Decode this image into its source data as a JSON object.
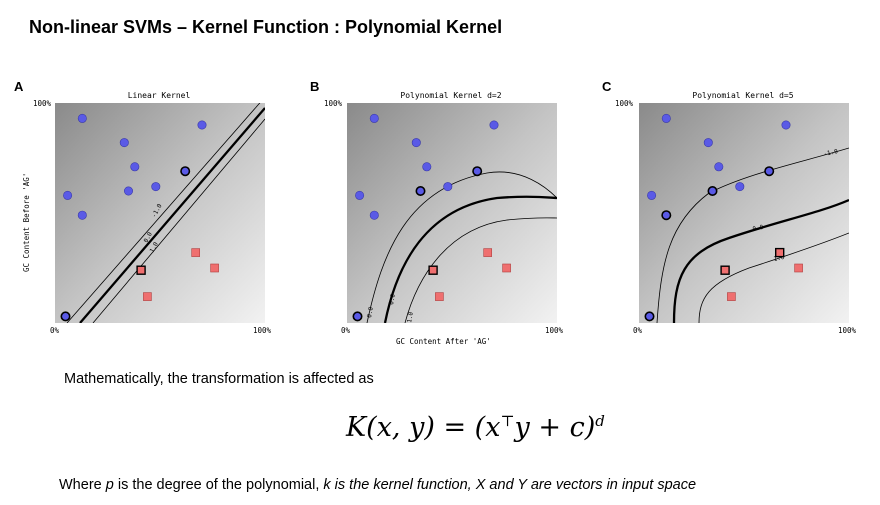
{
  "title": "Non-linear SVMs – Kernel Function : Polynomial Kernel",
  "panels": [
    {
      "letter": "A",
      "title": "Linear Kernel",
      "y_top": "100%",
      "x_left": "0%",
      "x_right": "100%",
      "contours": [
        "-1.0",
        "0.0",
        "1.0"
      ]
    },
    {
      "letter": "B",
      "title": "Polynomial Kernel d=2",
      "y_top": "100%",
      "x_left": "0%",
      "x_right": "100%",
      "contours": [
        "0.0",
        "0.0",
        "1.0"
      ]
    },
    {
      "letter": "C",
      "title": "Polynomial Kernel d=5",
      "y_top": "100%",
      "x_left": "0%",
      "x_right": "100%",
      "contours": [
        "-1.0",
        "0.0",
        "1.0"
      ]
    }
  ],
  "y_axis_label": "GC Content Before 'AG'",
  "x_axis_label": "GC Content After 'AG'",
  "colors": {
    "circle": "#5a5ae6",
    "square": "#ef6f6f",
    "support": "#1a1a4a"
  },
  "text_line1": "Mathematically, the transformation is affected as",
  "formula": {
    "main": "K(x, y) = (x",
    "sup1": "⊤",
    "mid": "y + c)",
    "sup2": "d"
  },
  "where": {
    "p1": "Where ",
    "p_var": "p",
    "p2": " is the degree of the polynomial, ",
    "p3": "k is the kernel function, X and Y are vectors in input space"
  },
  "chart_data": [
    {
      "type": "scatter",
      "title": "Linear Kernel",
      "series": [
        {
          "values": [
            [
              0.13,
              0.93
            ],
            [
              0.33,
              0.82
            ],
            [
              0.38,
              0.71
            ],
            [
              0.48,
              0.62
            ],
            [
              0.7,
              0.9
            ],
            [
              0.06,
              0.58
            ],
            [
              0.13,
              0.49
            ],
            [
              0.35,
              0.6
            ],
            [
              0.62,
              0.69
            ],
            [
              0.05,
              0.03
            ]
          ]
        },
        {
          "values": [
            [
              0.67,
              0.32
            ],
            [
              0.76,
              0.25
            ],
            [
              0.41,
              0.24
            ],
            [
              0.44,
              0.12
            ]
          ]
        }
      ],
      "xlim": [
        0,
        1
      ],
      "ylim": [
        0,
        1
      ]
    },
    {
      "type": "scatter",
      "title": "Polynomial Kernel d=2",
      "series": [
        {
          "values": [
            [
              0.13,
              0.93
            ],
            [
              0.33,
              0.82
            ],
            [
              0.38,
              0.71
            ],
            [
              0.48,
              0.62
            ],
            [
              0.7,
              0.9
            ],
            [
              0.06,
              0.58
            ],
            [
              0.13,
              0.49
            ],
            [
              0.35,
              0.6
            ],
            [
              0.62,
              0.69
            ],
            [
              0.05,
              0.03
            ]
          ]
        },
        {
          "values": [
            [
              0.67,
              0.32
            ],
            [
              0.76,
              0.25
            ],
            [
              0.41,
              0.24
            ],
            [
              0.44,
              0.12
            ]
          ]
        }
      ],
      "xlim": [
        0,
        1
      ],
      "ylim": [
        0,
        1
      ]
    },
    {
      "type": "scatter",
      "title": "Polynomial Kernel d=5",
      "series": [
        {
          "values": [
            [
              0.13,
              0.93
            ],
            [
              0.33,
              0.82
            ],
            [
              0.38,
              0.71
            ],
            [
              0.48,
              0.62
            ],
            [
              0.7,
              0.9
            ],
            [
              0.06,
              0.58
            ],
            [
              0.13,
              0.49
            ],
            [
              0.35,
              0.6
            ],
            [
              0.62,
              0.69
            ],
            [
              0.05,
              0.03
            ]
          ]
        },
        {
          "values": [
            [
              0.67,
              0.32
            ],
            [
              0.76,
              0.25
            ],
            [
              0.41,
              0.24
            ],
            [
              0.44,
              0.12
            ]
          ]
        }
      ],
      "xlim": [
        0,
        1
      ],
      "ylim": [
        0,
        1
      ]
    }
  ]
}
